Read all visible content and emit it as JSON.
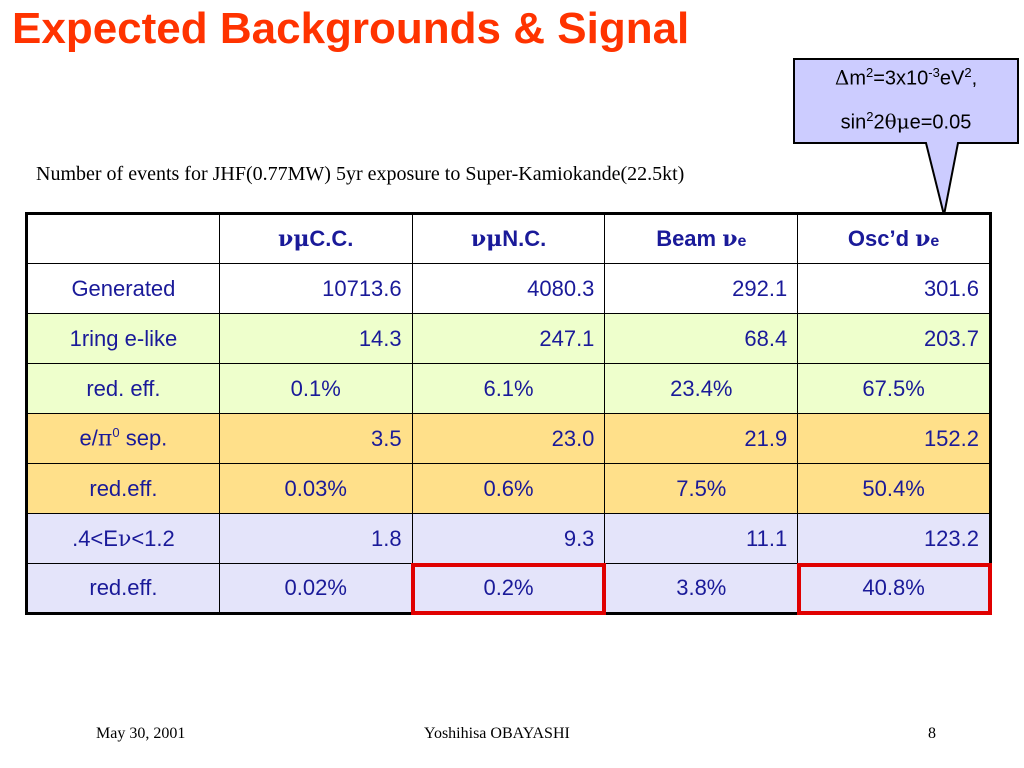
{
  "title": "Expected Backgrounds & Signal",
  "subtitle": "Number of events for JHF(0.77MW) 5yr exposure to Super-Kamiokande(22.5kt)",
  "callout": {
    "line1_delta": "Δ",
    "line1_m": "m",
    "line1_sup2": "2",
    "line1_eq": "=3x10",
    "line1_exp": "-3",
    "line1_ev": "eV",
    "line1_sup2b": "2",
    "line1_comma": ",",
    "line2_sin": "sin",
    "line2_sup": "2",
    "line2_two": "2",
    "line2_theta": "θ",
    "line2_mu": "μ",
    "line2_rest": "e=0.05",
    "fill": "#ccccff",
    "stroke": "#000000"
  },
  "table": {
    "headers": [
      {
        "nu": "ν",
        "mu": "μ",
        "text": "C.C."
      },
      {
        "nu": "ν",
        "mu": "μ",
        "text": "N.C."
      },
      {
        "pre": "Beam ",
        "nu": "ν",
        "sub": "e"
      },
      {
        "pre": "Osc’d ",
        "nu": "ν",
        "sub": "e"
      }
    ],
    "rows": [
      {
        "label": "Generated",
        "values": [
          "10713.6",
          "4080.3",
          "292.1",
          "301.6"
        ]
      },
      {
        "label": "1ring e-like",
        "values": [
          "14.3",
          "247.1",
          "68.4",
          "203.7"
        ]
      },
      {
        "label": "red. eff.",
        "values": [
          "0.1%",
          "6.1%",
          "23.4%",
          "67.5%"
        ]
      },
      {
        "label_pre": "e/",
        "label_pi": "π",
        "label_sup": "0",
        "label_post": " sep.",
        "values": [
          "3.5",
          "23.0",
          "21.9",
          "152.2"
        ]
      },
      {
        "label": "red.eff.",
        "values": [
          "0.03%",
          "0.6%",
          "7.5%",
          "50.4%"
        ]
      },
      {
        "label_pre": ".4<E",
        "label_nu": "ν",
        "label_post": "<1.2",
        "values": [
          "1.8",
          "9.3",
          "11.1",
          "123.2"
        ]
      },
      {
        "label": "red.eff.",
        "values": [
          "0.02%",
          "0.2%",
          "3.8%",
          "40.8%"
        ]
      }
    ],
    "colors": {
      "text": "#1a1a99",
      "green": "#eeffcc",
      "orange": "#ffe08a",
      "lavender": "#e4e4fa",
      "highlight": "#e00000"
    }
  },
  "footer": {
    "date": "May 30, 2001",
    "author": "Yoshihisa OBAYASHI",
    "page": "8"
  }
}
